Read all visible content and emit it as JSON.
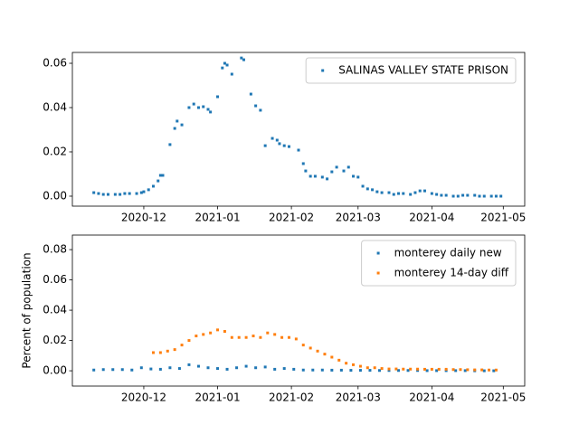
{
  "chart_data": [
    {
      "type": "scatter",
      "xlim": [
        18567,
        18757
      ],
      "ylim": [
        -0.0045,
        0.0649
      ],
      "xticks": [
        {
          "value": 18597,
          "label": "2020-12"
        },
        {
          "value": 18628,
          "label": "2021-01"
        },
        {
          "value": 18659,
          "label": "2021-02"
        },
        {
          "value": 18687,
          "label": "2021-03"
        },
        {
          "value": 18718,
          "label": "2021-04"
        },
        {
          "value": 18748,
          "label": "2021-05"
        }
      ],
      "yticks": [
        {
          "value": 0,
          "label": "0.00"
        },
        {
          "value": 0.02,
          "label": "0.02"
        },
        {
          "value": 0.04,
          "label": "0.04"
        },
        {
          "value": 0.06,
          "label": "0.06"
        }
      ],
      "legend": "upper right",
      "series": [
        {
          "name": "SALINAS VALLEY STATE PRISON",
          "color": "#1f77b4",
          "x": [
            18576,
            18578,
            18580,
            18582,
            18585,
            18587,
            18589,
            18591,
            18594,
            18596,
            18597,
            18599,
            18601,
            18603,
            18604,
            18605,
            18608,
            18610,
            18611,
            18613,
            18616,
            18618,
            18620,
            18622,
            18624,
            18625,
            18628,
            18630,
            18631,
            18632,
            18634,
            18638,
            18639,
            18642,
            18644,
            18646,
            18648,
            18651,
            18653,
            18654,
            18656,
            18658,
            18662,
            18664,
            18665,
            18667,
            18669,
            18672,
            18674,
            18676,
            18678,
            18681,
            18683,
            18685,
            18687,
            18689,
            18691,
            18693,
            18695,
            18697,
            18700,
            18702,
            18704,
            18706,
            18709,
            18711,
            18713,
            18715,
            18718,
            18720,
            18722,
            18724,
            18727,
            18729,
            18731,
            18733,
            18736,
            18738,
            18740,
            18743,
            18745,
            18747
          ],
          "values": [
            0.0016,
            0.0012,
            0.0008,
            0.0008,
            0.0008,
            0.0008,
            0.0012,
            0.0012,
            0.0012,
            0.0016,
            0.002,
            0.0029,
            0.0045,
            0.0069,
            0.0094,
            0.0094,
            0.0233,
            0.0306,
            0.0339,
            0.0322,
            0.04,
            0.0416,
            0.04,
            0.0404,
            0.0392,
            0.038,
            0.0449,
            0.0579,
            0.06,
            0.0592,
            0.0551,
            0.0624,
            0.0616,
            0.0461,
            0.0408,
            0.0388,
            0.0228,
            0.0261,
            0.0253,
            0.0237,
            0.0228,
            0.0224,
            0.0208,
            0.0147,
            0.0114,
            0.009,
            0.009,
            0.0086,
            0.0078,
            0.011,
            0.0131,
            0.0114,
            0.0131,
            0.009,
            0.0086,
            0.0045,
            0.0033,
            0.0029,
            0.002,
            0.0016,
            0.0016,
            0.0008,
            0.0012,
            0.0012,
            0.0008,
            0.0016,
            0.0024,
            0.0024,
            0.0012,
            0.0008,
            0.0004,
            0.0004,
            0,
            0,
            0.0004,
            0.0004,
            0.0004,
            0,
            0,
            0,
            0,
            0
          ]
        }
      ]
    },
    {
      "type": "scatter",
      "ylabel": "Percent of population",
      "xlim": [
        18567,
        18757
      ],
      "ylim": [
        -0.0101,
        0.0896
      ],
      "xticks": [
        {
          "value": 18597,
          "label": "2020-12"
        },
        {
          "value": 18628,
          "label": "2021-01"
        },
        {
          "value": 18659,
          "label": "2021-02"
        },
        {
          "value": 18687,
          "label": "2021-03"
        },
        {
          "value": 18718,
          "label": "2021-04"
        },
        {
          "value": 18748,
          "label": "2021-05"
        }
      ],
      "yticks": [
        {
          "value": 0,
          "label": "0.00"
        },
        {
          "value": 0.02,
          "label": "0.02"
        },
        {
          "value": 0.04,
          "label": "0.04"
        },
        {
          "value": 0.06,
          "label": "0.06"
        },
        {
          "value": 0.08,
          "label": "0.08"
        }
      ],
      "legend": "upper right",
      "series": [
        {
          "name": "monterey daily new",
          "color": "#1f77b4",
          "x": [
            18576,
            18580,
            18584,
            18588,
            18592,
            18596,
            18600,
            18604,
            18608,
            18612,
            18616,
            18620,
            18624,
            18628,
            18632,
            18636,
            18640,
            18644,
            18648,
            18652,
            18656,
            18660,
            18664,
            18668,
            18672,
            18676,
            18680,
            18684,
            18688,
            18692,
            18696,
            18700,
            18704,
            18708,
            18712,
            18716,
            18720,
            18724,
            18728,
            18732,
            18736,
            18740,
            18744
          ],
          "values": [
            0.0005,
            0.0008,
            0.0008,
            0.0008,
            0.0005,
            0.002,
            0.0012,
            0.001,
            0.002,
            0.0015,
            0.004,
            0.003,
            0.002,
            0.0015,
            0.001,
            0.002,
            0.003,
            0.002,
            0.0025,
            0.001,
            0.0015,
            0.001,
            0.0005,
            0.0005,
            0.0005,
            0.0004,
            0.0004,
            0.0003,
            0.0003,
            0.0003,
            0.0002,
            0.0002,
            0.0002,
            0.0002,
            0.0002,
            0.0001,
            0.0001,
            0.0001,
            0.0001,
            0.0001,
            0,
            0,
            0
          ]
        },
        {
          "name": "monterey 14-day diff",
          "color": "#ff7f0e",
          "x": [
            18601,
            18604,
            18607,
            18610,
            18613,
            18616,
            18619,
            18622,
            18625,
            18628,
            18631,
            18634,
            18637,
            18640,
            18643,
            18646,
            18649,
            18652,
            18655,
            18658,
            18661,
            18664,
            18667,
            18670,
            18673,
            18676,
            18679,
            18682,
            18685,
            18688,
            18691,
            18694,
            18697,
            18700,
            18703,
            18706,
            18709,
            18712,
            18715,
            18718,
            18721,
            18724,
            18727,
            18730,
            18733,
            18736,
            18739,
            18742,
            18745
          ],
          "values": [
            0.012,
            0.012,
            0.013,
            0.014,
            0.017,
            0.02,
            0.023,
            0.024,
            0.025,
            0.027,
            0.026,
            0.022,
            0.022,
            0.022,
            0.023,
            0.022,
            0.025,
            0.024,
            0.022,
            0.022,
            0.021,
            0.017,
            0.015,
            0.013,
            0.011,
            0.009,
            0.007,
            0.005,
            0.004,
            0.003,
            0.002,
            0.002,
            0.0015,
            0.0012,
            0.0012,
            0.0011,
            0.0011,
            0.0011,
            0.001,
            0.001,
            0.001,
            0.001,
            0.0008,
            0.0008,
            0.0007,
            0.0006,
            0.0006,
            0.0005,
            0.0005
          ]
        }
      ]
    }
  ]
}
